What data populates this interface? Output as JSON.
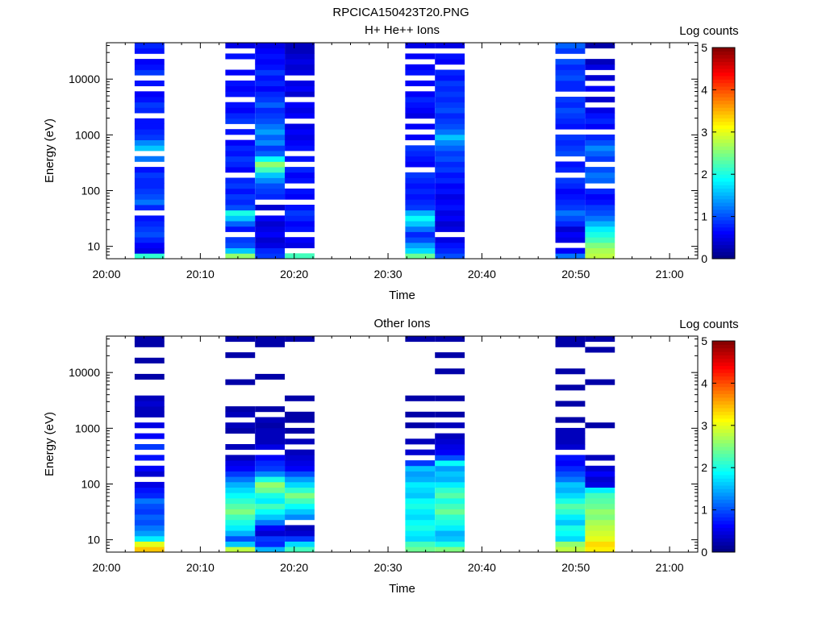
{
  "figure_title": "RPCICA150423T20.PNG",
  "colors": {
    "colormap": [
      "#00007f",
      "#0000ff",
      "#007fff",
      "#00ffff",
      "#7fff7f",
      "#ffff00",
      "#ff7f00",
      "#ff0000",
      "#7f0000"
    ]
  },
  "chart_data": [
    {
      "type": "heatmap",
      "title": "H+ He++ Ions",
      "xlabel": "Time",
      "ylabel": "Energy (eV)",
      "xlim": [
        "20:00",
        "21:03"
      ],
      "ylim": [
        6,
        45000
      ],
      "y_scale": "log",
      "x_ticks": [
        "20:00",
        "20:10",
        "20:20",
        "20:30",
        "20:40",
        "20:50",
        "21:00"
      ],
      "y_ticks": [
        10,
        100,
        1000,
        10000
      ],
      "y_tick_labels": [
        "10",
        "100",
        "1000",
        "10000"
      ],
      "colorbar": {
        "label": "Log counts",
        "range": [
          0,
          5
        ],
        "ticks": [
          "0",
          "1",
          "2",
          "3",
          "4",
          "5"
        ]
      },
      "columns": [
        {
          "start": "20:03:00",
          "end": "20:06:10",
          "levels": [
            2.1,
            0.5,
            0.6,
            0.8,
            1.0,
            0.9,
            0.8,
            0.7,
            0.6,
            0.8,
            1.2,
            1.0,
            0.9,
            0.8,
            0.8,
            0.9,
            0.7,
            0.9,
            1.2,
            1.4,
            1.6,
            1.3,
            0.9,
            0.8,
            0.7,
            0.7,
            0.6,
            0.8,
            0.9,
            0.7,
            0.6,
            0.8,
            0.7,
            0.6,
            0.9,
            0.7,
            0.6,
            0.8,
            0.7,
            0.8
          ],
          "gaps": [
            8,
            17,
            19,
            26,
            31,
            33,
            37
          ]
        },
        {
          "start": "20:12:40",
          "end": "20:15:50",
          "levels": [
            2.6,
            1.6,
            1.0,
            0.9,
            1.2,
            0.7,
            1.1,
            1.6,
            2.0,
            1.0,
            0.8,
            0.9,
            0.7,
            0.9,
            0.8,
            0.7,
            0.6,
            0.8,
            0.9,
            0.7,
            0.8,
            0.6,
            0.6,
            0.7,
            0.8,
            0.9,
            0.8,
            0.6,
            0.7,
            0.8,
            0.7,
            0.6,
            0.7,
            0.8,
            0.6,
            0.7,
            0.6,
            0.7,
            0.6,
            0.5
          ],
          "gaps": [
            4,
            15,
            22,
            24,
            29,
            33,
            35,
            36,
            38
          ]
        },
        {
          "start": "20:15:50",
          "end": "20:19:00",
          "levels": [
            0.9,
            0.8,
            0.5,
            0.4,
            0.6,
            0.5,
            0.4,
            0.6,
            0.5,
            0.4,
            0.6,
            0.8,
            0.9,
            1.0,
            1.3,
            1.6,
            2.2,
            2.6,
            1.9,
            1.1,
            0.9,
            1.3,
            1.1,
            1.4,
            1.2,
            1.0,
            0.9,
            0.8,
            1.1,
            0.9,
            0.8,
            0.6,
            0.8,
            0.7,
            0.9,
            0.7,
            0.6,
            0.7,
            0.6,
            0.5
          ],
          "gaps": [
            8,
            10
          ]
        },
        {
          "start": "20:19:00",
          "end": "20:22:10",
          "levels": [
            2.2,
            0.6,
            0.5,
            0.6,
            0.5,
            0.7,
            0.6,
            0.8,
            0.9,
            0.7,
            0.8,
            0.6,
            0.7,
            0.9,
            0.7,
            0.6,
            0.8,
            0.6,
            0.7,
            0.5,
            0.7,
            0.6,
            0.5,
            0.6,
            0.5,
            0.7,
            0.6,
            0.5,
            0.6,
            0.5,
            0.4,
            0.6,
            0.5,
            0.6,
            0.5,
            0.4,
            0.5,
            0.4,
            0.3,
            0.3
          ],
          "gaps": [
            1,
            4,
            10,
            13,
            17,
            19,
            25,
            29,
            33
          ]
        },
        {
          "start": "20:31:50",
          "end": "20:35:00",
          "levels": [
            2.4,
            1.7,
            1.4,
            1.0,
            0.8,
            1.2,
            1.6,
            1.9,
            1.5,
            0.9,
            0.8,
            0.7,
            0.8,
            0.7,
            0.8,
            0.9,
            0.8,
            0.6,
            0.7,
            0.8,
            0.9,
            0.7,
            0.6,
            0.5,
            0.6,
            0.7,
            0.5,
            0.6,
            0.7,
            0.8,
            0.6,
            0.7,
            0.6,
            0.8,
            0.7,
            0.6,
            0.7,
            0.6,
            0.6,
            0.5
          ],
          "gaps": [
            16,
            21,
            23,
            25,
            31,
            33,
            36,
            38
          ]
        },
        {
          "start": "20:35:00",
          "end": "20:38:10",
          "levels": [
            1.0,
            0.8,
            0.7,
            0.5,
            0.6,
            0.5,
            0.4,
            0.6,
            0.5,
            0.7,
            0.6,
            0.5,
            0.7,
            0.6,
            0.8,
            0.7,
            0.9,
            0.8,
            1.0,
            0.9,
            1.1,
            1.3,
            1.6,
            1.2,
            1.0,
            0.9,
            0.8,
            1.0,
            0.9,
            0.8,
            0.9,
            0.8,
            0.9,
            0.7,
            0.8,
            0.7,
            0.6,
            0.7,
            0.6,
            0.5
          ],
          "gaps": [
            4,
            35,
            38
          ]
        },
        {
          "start": "20:47:50",
          "end": "20:51:00",
          "levels": [
            1.2,
            0.6,
            0.4,
            0.5,
            0.6,
            0.4,
            0.8,
            1.0,
            1.2,
            0.9,
            0.8,
            0.7,
            0.6,
            0.8,
            0.9,
            1.0,
            0.8,
            0.7,
            1.1,
            1.0,
            0.9,
            0.8,
            0.9,
            0.8,
            0.7,
            0.8,
            0.9,
            1.0,
            0.8,
            0.9,
            0.7,
            0.8,
            0.8,
            1.0,
            0.9,
            0.8,
            1.0,
            0.9,
            0.9,
            1.1
          ],
          "gaps": [
            2,
            15,
            18,
            23,
            30,
            37
          ]
        },
        {
          "start": "20:51:00",
          "end": "20:54:10",
          "levels": [
            2.8,
            2.7,
            2.5,
            2.2,
            2.0,
            1.8,
            1.5,
            1.2,
            1.0,
            0.9,
            0.7,
            0.6,
            0.8,
            1.0,
            1.1,
            1.2,
            1.0,
            0.8,
            0.9,
            1.1,
            1.3,
            1.0,
            0.8,
            0.7,
            0.6,
            0.8,
            0.7,
            0.5,
            0.6,
            0.4,
            0.5,
            0.6,
            0.5,
            0.4,
            0.3,
            0.5,
            0.3,
            0.4,
            0.3,
            0.2
          ],
          "gaps": [
            13,
            17,
            23,
            28,
            30,
            32,
            34,
            37,
            38
          ]
        }
      ]
    },
    {
      "type": "heatmap",
      "title": "Other Ions",
      "xlabel": "Time",
      "ylabel": "Energy (eV)",
      "xlim": [
        "20:00",
        "21:03"
      ],
      "ylim": [
        6,
        45000
      ],
      "y_scale": "log",
      "x_ticks": [
        "20:00",
        "20:10",
        "20:20",
        "20:30",
        "20:40",
        "20:50",
        "21:00"
      ],
      "y_ticks": [
        10,
        100,
        1000,
        10000
      ],
      "y_tick_labels": [
        "10",
        "100",
        "1000",
        "10000"
      ],
      "colorbar": {
        "label": "Log counts",
        "range": [
          0,
          5
        ],
        "ticks": [
          "0",
          "1",
          "2",
          "3",
          "4",
          "5"
        ]
      },
      "columns": [
        {
          "start": "20:03:00",
          "end": "20:06:10",
          "levels": [
            3.4,
            3.0,
            1.8,
            1.4,
            1.2,
            1.0,
            1.1,
            0.9,
            1.0,
            1.2,
            0.8,
            0.7,
            0.5,
            0.6,
            0.4,
            0.6,
            0.5,
            0.7,
            0.6,
            0.9,
            0.8,
            0.6,
            0.7,
            0.5,
            0.4,
            0.3,
            0.3,
            0.4,
            0.3,
            0.3,
            0.2,
            0.3,
            0.2,
            0.2,
            0.2,
            0.2,
            0.2,
            0.2,
            0.2,
            0.2
          ],
          "gaps": [
            13,
            16,
            18,
            20,
            22,
            24,
            29,
            30,
            31,
            33,
            34,
            36,
            37
          ]
        },
        {
          "start": "20:12:40",
          "end": "20:15:50",
          "levels": [
            2.8,
            1.6,
            1.0,
            1.5,
            1.8,
            2.0,
            2.2,
            2.5,
            2.3,
            2.1,
            1.9,
            1.7,
            1.5,
            1.2,
            0.9,
            0.6,
            0.5,
            0.3,
            0.4,
            0.3,
            0.3,
            0.3,
            0.2,
            0.3,
            0.2,
            0.3,
            0.2,
            0.3,
            0.2,
            0.2,
            0.2,
            0.2,
            0.2,
            0.2,
            0.2,
            0.2,
            0.2,
            0.2,
            0.2,
            0.2
          ],
          "gaps": [
            18,
            20,
            21,
            24,
            27,
            28,
            29,
            30,
            32,
            33,
            34,
            35,
            37,
            38
          ]
        },
        {
          "start": "20:15:50",
          "end": "20:19:00",
          "levels": [
            1.5,
            0.8,
            0.9,
            0.4,
            0.6,
            1.2,
            1.6,
            1.9,
            2.2,
            1.8,
            2.0,
            2.4,
            2.6,
            2.0,
            1.3,
            0.9,
            0.8,
            0.6,
            0.4,
            0.5,
            0.3,
            0.3,
            0.3,
            0.2,
            0.3,
            0.2,
            0.2,
            0.2,
            0.2,
            0.2,
            0.2,
            0.2,
            0.2,
            0.2,
            0.2,
            0.2,
            0.2,
            0.2,
            0.2,
            0.2
          ],
          "gaps": [
            18,
            25,
            27,
            28,
            29,
            30,
            31,
            33,
            34,
            35,
            36,
            37
          ]
        },
        {
          "start": "20:19:00",
          "end": "20:22:10",
          "levels": [
            2.2,
            1.7,
            0.9,
            0.4,
            0.3,
            0.8,
            1.3,
            1.6,
            1.9,
            2.2,
            2.5,
            2.1,
            1.7,
            1.4,
            1.0,
            0.6,
            0.5,
            0.4,
            0.3,
            0.4,
            0.3,
            0.3,
            0.2,
            0.3,
            0.2,
            0.2,
            0.2,
            0.2,
            0.2,
            0.2,
            0.2,
            0.2,
            0.2,
            0.2,
            0.2,
            0.2,
            0.2,
            0.2,
            0.2,
            0.2
          ],
          "gaps": [
            5,
            19,
            21,
            23,
            26,
            27,
            29,
            30,
            31,
            32,
            33,
            34,
            35,
            36,
            37,
            38
          ]
        },
        {
          "start": "20:31:50",
          "end": "20:35:00",
          "levels": [
            2.4,
            2.2,
            1.7,
            1.8,
            2.0,
            1.9,
            1.7,
            1.8,
            2.0,
            1.9,
            1.6,
            1.7,
            1.8,
            1.5,
            1.4,
            1.6,
            0.9,
            0.5,
            0.4,
            0.3,
            0.3,
            0.3,
            0.3,
            0.2,
            0.2,
            0.2,
            0.2,
            0.2,
            0.2,
            0.2,
            0.2,
            0.2,
            0.2,
            0.2,
            0.2,
            0.2,
            0.2,
            0.2,
            0.2,
            0.2
          ],
          "gaps": [
            17,
            19,
            21,
            22,
            24,
            26,
            27,
            29,
            30,
            31,
            32,
            33,
            34,
            35,
            36,
            37,
            38
          ]
        },
        {
          "start": "20:35:00",
          "end": "20:38:10",
          "levels": [
            2.5,
            2.0,
            1.6,
            1.5,
            1.8,
            2.0,
            2.1,
            2.4,
            2.2,
            2.0,
            2.3,
            2.1,
            1.8,
            1.5,
            1.6,
            1.4,
            1.9,
            1.0,
            0.6,
            0.5,
            0.4,
            0.3,
            0.3,
            0.3,
            0.2,
            0.2,
            0.2,
            0.2,
            0.2,
            0.2,
            0.2,
            0.2,
            0.2,
            0.2,
            0.2,
            0.2,
            0.2,
            0.2,
            0.2,
            0.2
          ],
          "gaps": [
            22,
            24,
            26,
            27,
            29,
            30,
            31,
            32,
            34,
            35,
            37,
            38
          ]
        },
        {
          "start": "20:47:50",
          "end": "20:51:00",
          "levels": [
            2.8,
            2.6,
            1.7,
            1.9,
            2.0,
            1.6,
            1.8,
            2.1,
            2.3,
            2.0,
            1.7,
            1.5,
            1.6,
            1.2,
            1.0,
            0.8,
            0.6,
            0.7,
            0.5,
            0.4,
            0.3,
            0.3,
            0.3,
            0.2,
            0.2,
            0.2,
            0.2,
            0.2,
            0.2,
            0.2,
            0.2,
            0.2,
            0.2,
            0.2,
            0.2,
            0.2,
            0.2,
            0.2,
            0.2,
            0.2
          ],
          "gaps": [
            18,
            23,
            25,
            26,
            28,
            29,
            31,
            32,
            34,
            35,
            36,
            37
          ]
        },
        {
          "start": "20:51:00",
          "end": "20:54:10",
          "levels": [
            3.2,
            3.3,
            3.0,
            2.9,
            2.8,
            2.7,
            2.5,
            2.6,
            2.4,
            2.3,
            2.2,
            1.8,
            0.5,
            0.4,
            0.6,
            0.4,
            0.3,
            0.3,
            0.3,
            0.2,
            0.2,
            0.2,
            0.2,
            0.2,
            0.2,
            0.2,
            0.2,
            0.2,
            0.2,
            0.2,
            0.2,
            0.2,
            0.2,
            0.2,
            0.2,
            0.2,
            0.2,
            0.2,
            0.2,
            0.2
          ],
          "gaps": [
            16,
            18,
            19,
            20,
            21,
            22,
            24,
            25,
            26,
            27,
            28,
            29,
            30,
            32,
            33,
            34,
            35,
            36,
            38
          ]
        }
      ]
    }
  ]
}
